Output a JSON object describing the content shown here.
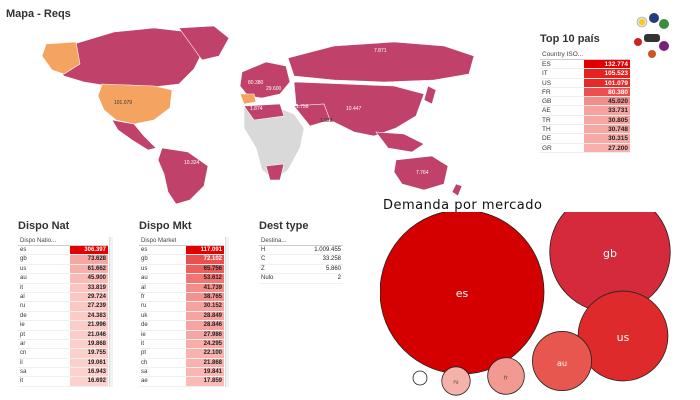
{
  "map_panel": {
    "title": "Mapa - Reqs"
  },
  "map_labels": [
    "7.871",
    "101.079",
    "80.380",
    "29.600",
    "1.874",
    "1.756",
    "10.447",
    "1.023",
    "10.324",
    "1.756",
    "7.764"
  ],
  "top10": {
    "title": "Top 10 país",
    "column": "Country ISO...",
    "rows": [
      {
        "country": "ES",
        "value": "132.774",
        "intensity": 1.0
      },
      {
        "country": "IT",
        "value": "105.523",
        "intensity": 0.85
      },
      {
        "country": "US",
        "value": "101.079",
        "intensity": 0.82
      },
      {
        "country": "FR",
        "value": "80.380",
        "intensity": 0.65
      },
      {
        "country": "GB",
        "value": "45.020",
        "intensity": 0.38
      },
      {
        "country": "AE",
        "value": "33.731",
        "intensity": 0.28
      },
      {
        "country": "TR",
        "value": "30.805",
        "intensity": 0.26
      },
      {
        "country": "TH",
        "value": "30.748",
        "intensity": 0.26
      },
      {
        "country": "DE",
        "value": "30.315",
        "intensity": 0.25
      },
      {
        "country": "GR",
        "value": "27.200",
        "intensity": 0.22
      }
    ]
  },
  "dispo_nat": {
    "title": "Dispo Nat",
    "column": "Dispo Natio...",
    "rows": [
      {
        "key": "es",
        "value": "306.397",
        "intensity": 1.0
      },
      {
        "key": "gb",
        "value": "73.628",
        "intensity": 0.26
      },
      {
        "key": "us",
        "value": "61.662",
        "intensity": 0.22
      },
      {
        "key": "au",
        "value": "45.900",
        "intensity": 0.17
      },
      {
        "key": "it",
        "value": "33.819",
        "intensity": 0.13
      },
      {
        "key": "al",
        "value": "29.724",
        "intensity": 0.12
      },
      {
        "key": "ru",
        "value": "27.239",
        "intensity": 0.11
      },
      {
        "key": "de",
        "value": "24.383",
        "intensity": 0.1
      },
      {
        "key": "ie",
        "value": "21.996",
        "intensity": 0.09
      },
      {
        "key": "pt",
        "value": "21.046",
        "intensity": 0.09
      },
      {
        "key": "ar",
        "value": "19.868",
        "intensity": 0.08
      },
      {
        "key": "cn",
        "value": "19.755",
        "intensity": 0.08
      },
      {
        "key": "il",
        "value": "19.061",
        "intensity": 0.08
      },
      {
        "key": "sa",
        "value": "16.943",
        "intensity": 0.07
      },
      {
        "key": "it",
        "value": "16.692",
        "intensity": 0.07
      }
    ]
  },
  "dispo_mkt": {
    "title": "Dispo Mkt",
    "column": "Dispo Market",
    "rows": [
      {
        "key": "es",
        "value": "117.091",
        "intensity": 1.0
      },
      {
        "key": "gb",
        "value": "72.102",
        "intensity": 0.65
      },
      {
        "key": "us",
        "value": "65.756",
        "intensity": 0.58
      },
      {
        "key": "au",
        "value": "53.612",
        "intensity": 0.48
      },
      {
        "key": "al",
        "value": "41.739",
        "intensity": 0.38
      },
      {
        "key": "fr",
        "value": "38.765",
        "intensity": 0.35
      },
      {
        "key": "ru",
        "value": "30.152",
        "intensity": 0.28
      },
      {
        "key": "uk",
        "value": "28.849",
        "intensity": 0.27
      },
      {
        "key": "de",
        "value": "28.846",
        "intensity": 0.27
      },
      {
        "key": "ie",
        "value": "27.986",
        "intensity": 0.26
      },
      {
        "key": "it",
        "value": "24.295",
        "intensity": 0.23
      },
      {
        "key": "pt",
        "value": "22.100",
        "intensity": 0.21
      },
      {
        "key": "ch",
        "value": "21.868",
        "intensity": 0.21
      },
      {
        "key": "sa",
        "value": "19.841",
        "intensity": 0.19
      },
      {
        "key": "ae",
        "value": "17.859",
        "intensity": 0.17
      }
    ]
  },
  "dest_type": {
    "title": "Dest type",
    "column": "Destina...",
    "rows": [
      {
        "key": "H",
        "value": "1.009.455"
      },
      {
        "key": "C",
        "value": "33.258"
      },
      {
        "key": "Z",
        "value": "5.860"
      },
      {
        "key": "Nulo",
        "value": "2"
      }
    ]
  },
  "chart_data": {
    "type": "bubble",
    "title": "Demanda por mercado",
    "bubbles": [
      {
        "label": "es",
        "value": 1.0,
        "color": "#d40000"
      },
      {
        "label": "gb",
        "value": 0.54,
        "color": "#d42a3b"
      },
      {
        "label": "us",
        "value": 0.3,
        "color": "#de2a2a"
      },
      {
        "label": "au",
        "value": 0.13,
        "color": "#e85650"
      },
      {
        "label": "fr",
        "value": 0.05,
        "color": "#f29a92"
      },
      {
        "label": "ru",
        "value": 0.03,
        "color": "#f5b2aa"
      },
      {
        "label": "",
        "value": 0.007,
        "color": "#ffffff"
      }
    ]
  },
  "colors": {
    "map_country": "#c0426a",
    "map_highlight": "#f4a460",
    "map_other": "#d9d9d9",
    "accent": "#e20000"
  }
}
